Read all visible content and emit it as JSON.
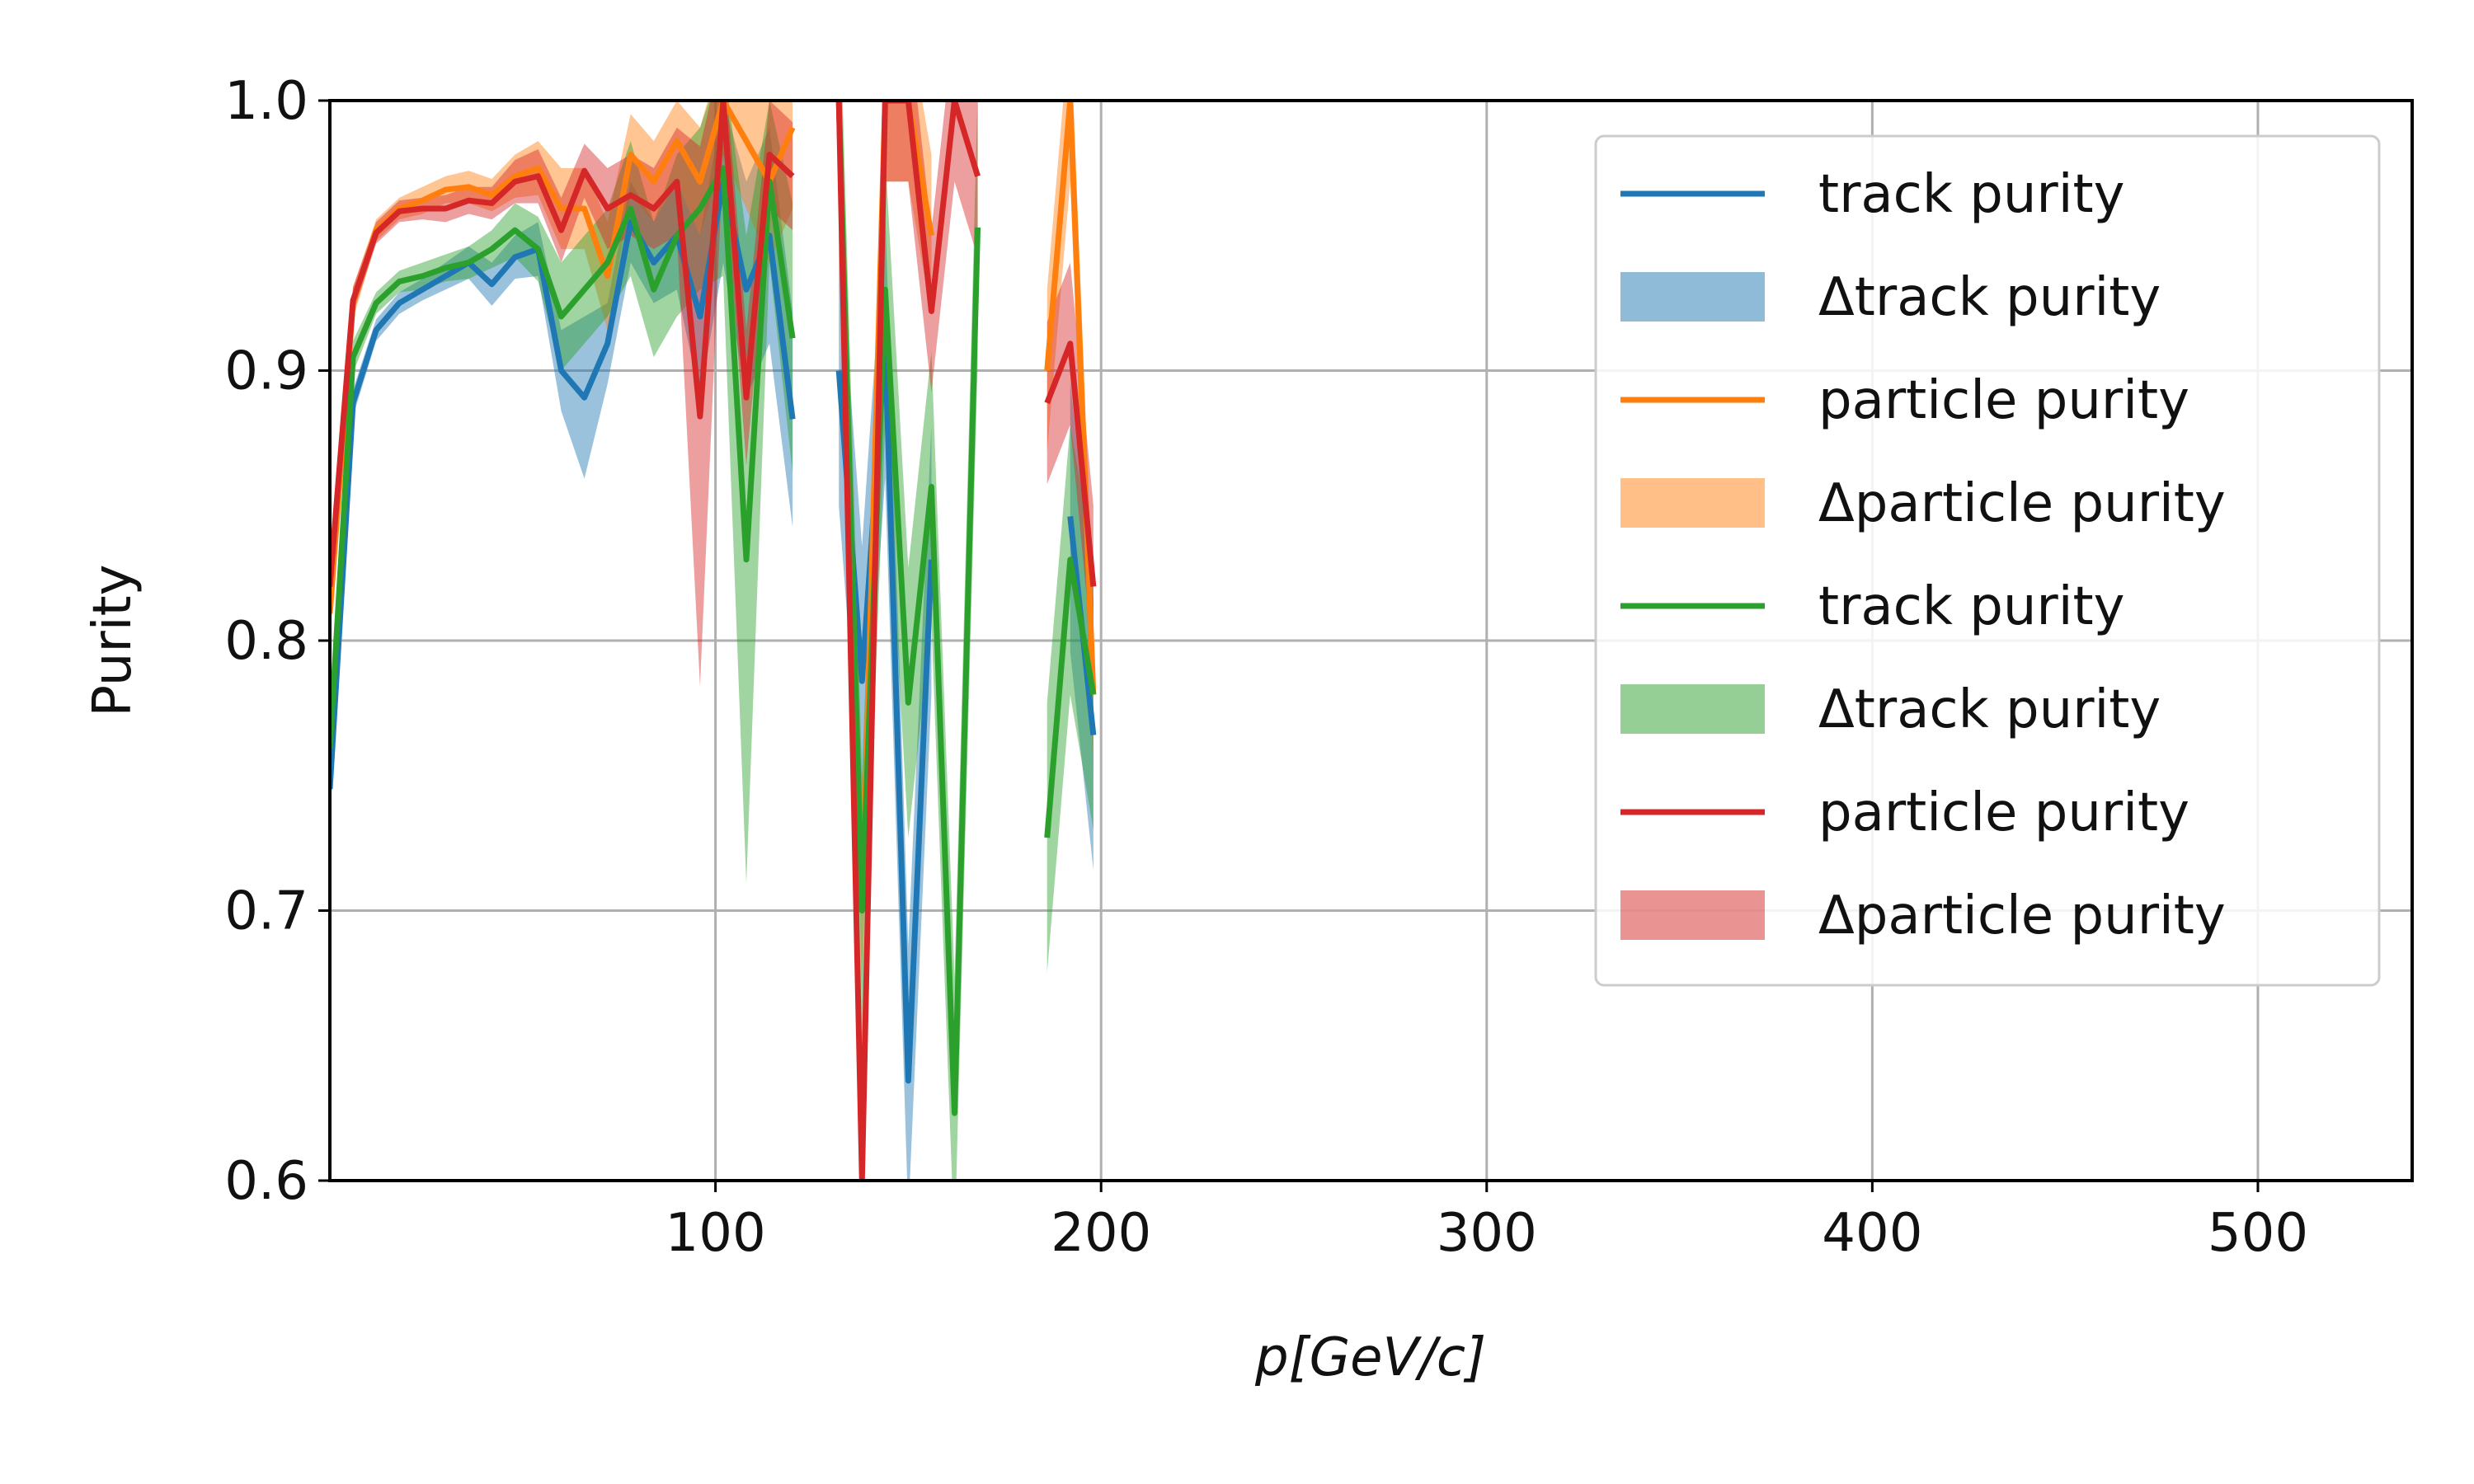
{
  "chart_data": {
    "type": "line",
    "xlabel": "p[GeV/c]",
    "ylabel": "Purity",
    "xlim": [
      0,
      540
    ],
    "ylim": [
      0.6,
      1.0
    ],
    "xticks": [
      100,
      200,
      300,
      400,
      500
    ],
    "yticks": [
      0.6,
      0.7,
      0.8,
      0.9,
      1.0
    ],
    "xtick_labels": [
      "100",
      "200",
      "300",
      "400",
      "500"
    ],
    "ytick_labels": [
      "0.6",
      "0.7",
      "0.8",
      "0.9",
      "1.0"
    ],
    "grid": true,
    "legend_position": "top-right",
    "legend": [
      {
        "label": "track purity",
        "kind": "line",
        "color": "#1f77b4"
      },
      {
        "label": "Δtrack purity",
        "kind": "band",
        "color": "#1f77b4"
      },
      {
        "label": "particle purity",
        "kind": "line",
        "color": "#ff7f0e"
      },
      {
        "label": "Δparticle purity",
        "kind": "band",
        "color": "#ff7f0e"
      },
      {
        "label": "track purity",
        "kind": "line",
        "color": "#2ca02c"
      },
      {
        "label": "Δtrack purity",
        "kind": "band",
        "color": "#2ca02c"
      },
      {
        "label": "particle purity",
        "kind": "line",
        "color": "#d62728"
      },
      {
        "label": "Δparticle purity",
        "kind": "band",
        "color": "#d62728"
      }
    ],
    "series": [
      {
        "color": "#1f77b4",
        "x": [
          0,
          6,
          12,
          18,
          24,
          30,
          36,
          42,
          48,
          54,
          60,
          66,
          72,
          78,
          84,
          90,
          96,
          102,
          108,
          114,
          120,
          null,
          132,
          138,
          144,
          150,
          156,
          null,
          186,
          192,
          198
        ],
        "y": [
          0.745,
          0.888,
          0.915,
          0.925,
          0.93,
          0.935,
          0.94,
          0.932,
          0.942,
          0.945,
          0.9,
          0.89,
          0.91,
          0.955,
          0.94,
          0.95,
          0.92,
          0.97,
          0.93,
          0.95,
          0.882,
          null,
          0.9,
          0.785,
          0.91,
          0.637,
          0.83,
          null,
          null,
          0.846,
          0.765
        ],
        "err": [
          0.01,
          0.005,
          0.004,
          0.004,
          0.004,
          0.005,
          0.006,
          0.008,
          0.008,
          0.01,
          0.015,
          0.03,
          0.015,
          0.015,
          0.015,
          0.02,
          0.03,
          0.03,
          0.04,
          0.04,
          0.04,
          null,
          0.05,
          0.05,
          0.05,
          0.05,
          0.05,
          null,
          0.05,
          0.05,
          0.05
        ]
      },
      {
        "color": "#ff7f0e",
        "x": [
          0,
          6,
          12,
          18,
          24,
          30,
          36,
          42,
          48,
          54,
          60,
          66,
          72,
          78,
          84,
          90,
          96,
          102,
          108,
          114,
          120,
          null,
          132,
          138,
          144,
          150,
          156,
          null,
          186,
          192,
          198
        ],
        "y": [
          0.81,
          0.925,
          0.952,
          0.96,
          0.963,
          0.967,
          0.968,
          0.965,
          0.972,
          0.975,
          0.96,
          0.96,
          0.935,
          0.98,
          0.97,
          0.985,
          0.97,
          1.0,
          0.985,
          0.97,
          0.99,
          null,
          1.0,
          0.7,
          1.0,
          1.0,
          0.95,
          null,
          0.9,
          1.0,
          0.78
        ],
        "err": [
          0.01,
          0.006,
          0.004,
          0.004,
          0.005,
          0.005,
          0.006,
          0.006,
          0.008,
          0.01,
          0.015,
          0.015,
          0.02,
          0.015,
          0.015,
          0.015,
          0.02,
          0.02,
          0.025,
          0.03,
          0.03,
          null,
          0.03,
          0.03,
          0.03,
          0.03,
          0.03,
          null,
          0.03,
          0.03,
          0.03
        ]
      },
      {
        "color": "#2ca02c",
        "x": [
          0,
          6,
          12,
          18,
          24,
          30,
          36,
          42,
          48,
          54,
          60,
          66,
          72,
          78,
          84,
          90,
          96,
          102,
          108,
          114,
          120,
          null,
          132,
          138,
          144,
          150,
          156,
          162,
          168,
          null,
          186,
          192,
          198
        ],
        "y": [
          0.76,
          0.905,
          0.925,
          0.933,
          0.935,
          0.938,
          0.94,
          0.945,
          0.952,
          0.945,
          0.92,
          0.93,
          0.94,
          0.96,
          0.93,
          0.95,
          0.96,
          0.975,
          0.83,
          0.97,
          0.912,
          null,
          1.0,
          0.7,
          0.93,
          0.777,
          0.857,
          0.625,
          0.953,
          null,
          0.727,
          0.83,
          0.78
        ],
        "err": [
          0.01,
          0.006,
          0.004,
          0.004,
          0.005,
          0.005,
          0.006,
          0.007,
          0.01,
          0.012,
          0.02,
          0.02,
          0.02,
          0.025,
          0.025,
          0.03,
          0.03,
          0.04,
          0.12,
          0.03,
          0.05,
          null,
          0.05,
          0.05,
          0.05,
          0.05,
          0.05,
          0.05,
          0.05,
          null,
          0.05,
          0.05,
          0.05
        ]
      },
      {
        "color": "#d62728",
        "x": [
          0,
          6,
          12,
          18,
          24,
          30,
          36,
          42,
          48,
          54,
          60,
          66,
          72,
          78,
          84,
          90,
          96,
          102,
          108,
          114,
          120,
          null,
          132,
          138,
          144,
          150,
          156,
          162,
          168,
          null,
          186,
          192,
          198
        ],
        "y": [
          0.82,
          0.926,
          0.951,
          0.959,
          0.96,
          0.96,
          0.963,
          0.962,
          0.97,
          0.972,
          0.952,
          0.974,
          0.96,
          0.965,
          0.96,
          0.97,
          0.883,
          1.0,
          0.89,
          0.98,
          0.972,
          null,
          1.0,
          0.6,
          1.0,
          1.0,
          0.922,
          1.0,
          0.972,
          null,
          0.888,
          0.91,
          0.82
        ],
        "err": [
          0.01,
          0.005,
          0.004,
          0.004,
          0.004,
          0.005,
          0.005,
          0.006,
          0.008,
          0.01,
          0.012,
          0.01,
          0.015,
          0.015,
          0.015,
          0.02,
          0.1,
          0.02,
          0.025,
          0.02,
          0.02,
          null,
          0.03,
          0.03,
          0.03,
          0.03,
          0.03,
          0.03,
          0.03,
          null,
          0.03,
          0.03,
          0.03
        ]
      }
    ]
  }
}
